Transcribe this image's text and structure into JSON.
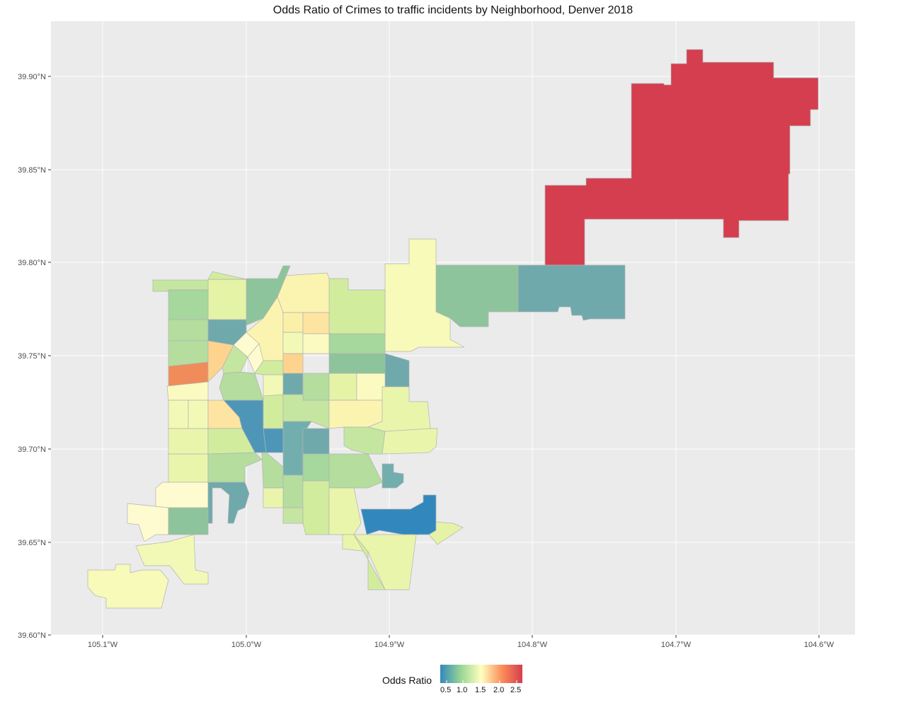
{
  "title": "Odds Ratio of Crimes to traffic incidents by Neighborhood, Denver 2018",
  "colors": {
    "panel": "#ebebeb",
    "grid": "#ffffff",
    "airport": "#d53e4f",
    "low": "#3288bd",
    "mid": "#ffffbf",
    "high": "#d53e4f"
  },
  "axes": {
    "x_ticks": [
      "105.1°W",
      "105.0°W",
      "104.9°W",
      "104.8°W",
      "104.7°W",
      "104.6°W"
    ],
    "y_ticks": [
      "39.90°N",
      "39.85°N",
      "39.80°N",
      "39.75°N",
      "39.70°N",
      "39.65°N",
      "39.60°N"
    ]
  },
  "legend": {
    "title": "Odds Ratio",
    "ticks": [
      "0.5",
      "1.0",
      "1.5",
      "2.0",
      "2.5"
    ]
  }
}
